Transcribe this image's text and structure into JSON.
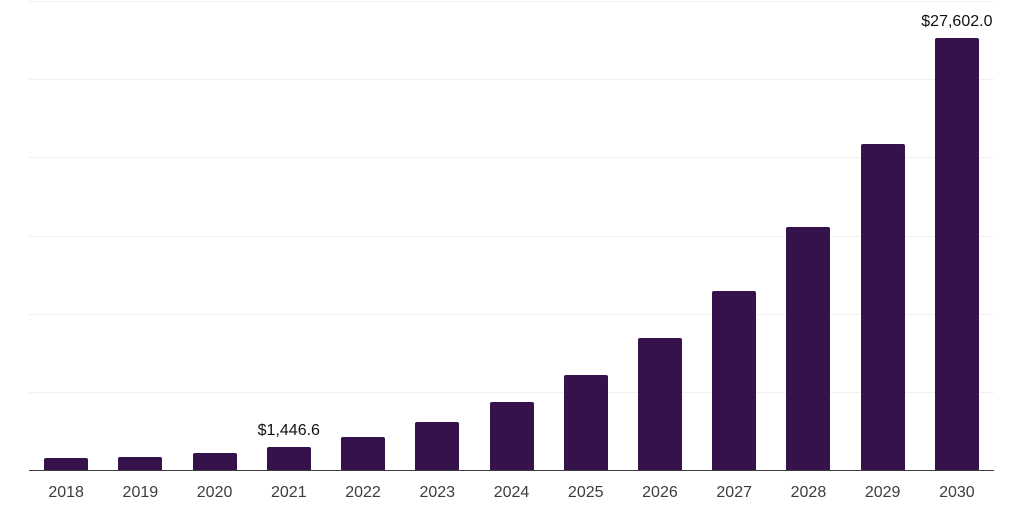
{
  "chart_data": {
    "type": "bar",
    "title": "",
    "xlabel": "",
    "ylabel": "",
    "categories": [
      "2018",
      "2019",
      "2020",
      "2021",
      "2022",
      "2023",
      "2024",
      "2025",
      "2026",
      "2027",
      "2028",
      "2029",
      "2030"
    ],
    "values": [
      770,
      850,
      1085,
      1446.6,
      2080,
      3050,
      4340,
      6090,
      8440,
      11470,
      15520,
      20850,
      27602.0
    ],
    "point_labels": {
      "2021": "$1,446.6",
      "2030": "$27,602.0"
    },
    "ylim": [
      0,
      30000
    ],
    "gridline_step": 5000,
    "grid": "horizontal-only",
    "y_tick_labels_shown": false,
    "legend_position": "none",
    "bar_color": "#36124D",
    "axis_line_color": "#3f3f3f",
    "gridline_color": "#f0f0f0",
    "tick_label_color": "#3c3c3c",
    "value_label_color": "#111111"
  }
}
